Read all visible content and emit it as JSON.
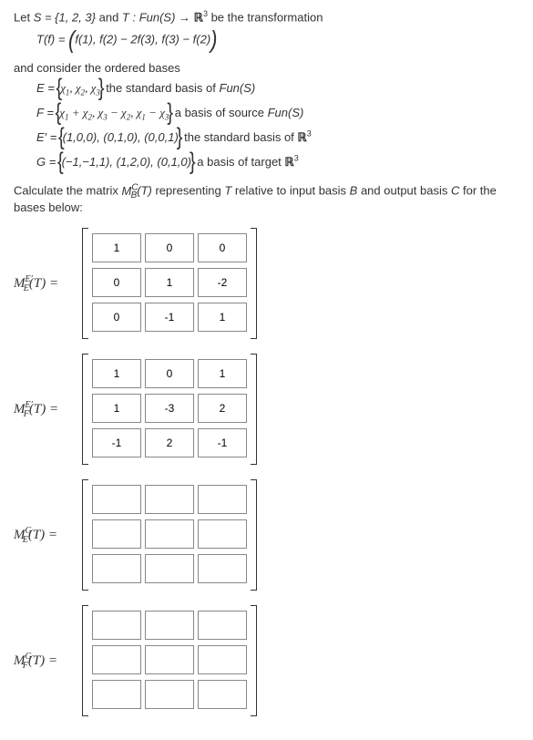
{
  "text": {
    "intro_prefix": "Let ",
    "set_def": "S = {1, 2, 3}",
    "intro_mid": " and ",
    "trans_decl": "T : Fun(S) → ",
    "r3": "ℝ",
    "intro_suffix": " be the transformation",
    "tf_lhs": "T(f) = ",
    "tf_rhs": "f(1), f(2) − 2f(3), f(3) − f(2)",
    "bases_intro": "and consider the ordered bases",
    "basis_E_var": "E = ",
    "basis_E_set": "χ",
    "basis_E_desc": " the standard basis of ",
    "basis_E_fun": "Fun(S)",
    "basis_F_var": "F = ",
    "basis_F_desc": " a basis of source ",
    "basis_F_fun": "Fun(S)",
    "basis_Ep_var": "E′ = ",
    "basis_Ep_set": "(1,0,0), (0,1,0), (0,0,1)",
    "basis_Ep_desc": " the standard basis of ",
    "basis_G_var": "G = ",
    "basis_G_set": "(−1,−1,1), (1,2,0), (0,1,0)",
    "basis_G_desc": " a basis of target ",
    "calc_prefix": "Calculate the matrix ",
    "calc_mid1": "M",
    "calc_mid2": "(T)",
    "calc_mid3": " representing ",
    "calc_T": "T",
    "calc_mid4": " relative to input basis ",
    "calc_B": "B",
    "calc_mid5": " and output basis ",
    "calc_C": "C",
    "calc_suffix": " for the bases below:"
  },
  "matrices": [
    {
      "sup": "E′",
      "sub": "E",
      "cells": [
        "1",
        "0",
        "0",
        "0",
        "1",
        "-2",
        "0",
        "-1",
        "1"
      ]
    },
    {
      "sup": "E′",
      "sub": "F",
      "cells": [
        "1",
        "0",
        "1",
        "1",
        "-3",
        "2",
        "-1",
        "2",
        "-1"
      ]
    },
    {
      "sup": "G",
      "sub": "E",
      "cells": [
        "",
        "",
        "",
        "",
        "",
        "",
        "",
        "",
        ""
      ]
    },
    {
      "sup": "G",
      "sub": "F",
      "cells": [
        "",
        "",
        "",
        "",
        "",
        "",
        "",
        "",
        ""
      ]
    }
  ],
  "style": {
    "cell_border": "#888",
    "text_color": "#333",
    "font_size": 13
  }
}
